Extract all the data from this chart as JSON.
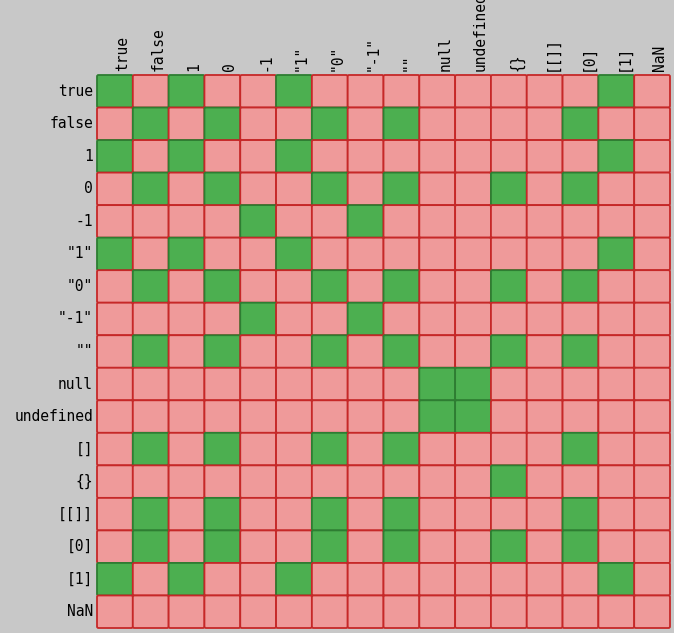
{
  "row_labels": [
    "true",
    "false",
    "1",
    "0",
    "-1",
    "\"1\"",
    "\"0\"",
    "\"-1\"",
    "\"\"",
    "null",
    "undefined",
    "[]",
    "{}",
    "[[]]",
    "[0]",
    "[1]",
    "NaN"
  ],
  "col_labels": [
    "true",
    "false",
    "1",
    "0",
    "-1",
    "\"1\"",
    "\"0\"",
    "\"-1\"",
    "\"\"",
    "null",
    "undefined",
    "{}",
    "[[]]",
    "[0]",
    "[1]",
    "NaN"
  ],
  "green_color": "#4CAF50",
  "red_color": "#EF9A9A",
  "border_red": "#C62828",
  "border_green": "#2E7D32",
  "fig_bg": "#C8C8C8",
  "grid": [
    [
      1,
      0,
      1,
      0,
      0,
      1,
      0,
      0,
      0,
      0,
      0,
      0,
      0,
      0,
      1,
      0
    ],
    [
      0,
      1,
      0,
      1,
      0,
      0,
      1,
      0,
      1,
      0,
      0,
      0,
      0,
      1,
      0,
      0
    ],
    [
      1,
      0,
      1,
      0,
      0,
      1,
      0,
      0,
      0,
      0,
      0,
      0,
      0,
      0,
      1,
      0
    ],
    [
      0,
      1,
      0,
      1,
      0,
      0,
      1,
      0,
      1,
      0,
      0,
      1,
      0,
      1,
      0,
      0
    ],
    [
      0,
      0,
      0,
      0,
      1,
      0,
      0,
      1,
      0,
      0,
      0,
      0,
      0,
      0,
      0,
      0
    ],
    [
      1,
      0,
      1,
      0,
      0,
      1,
      0,
      0,
      0,
      0,
      0,
      0,
      0,
      0,
      1,
      0
    ],
    [
      0,
      1,
      0,
      1,
      0,
      0,
      1,
      0,
      1,
      0,
      0,
      1,
      0,
      1,
      0,
      0
    ],
    [
      0,
      0,
      0,
      0,
      1,
      0,
      0,
      1,
      0,
      0,
      0,
      0,
      0,
      0,
      0,
      0
    ],
    [
      0,
      1,
      0,
      1,
      0,
      0,
      1,
      0,
      1,
      0,
      0,
      1,
      0,
      1,
      0,
      0
    ],
    [
      0,
      0,
      0,
      0,
      0,
      0,
      0,
      0,
      0,
      1,
      1,
      0,
      0,
      0,
      0,
      0
    ],
    [
      0,
      0,
      0,
      0,
      0,
      0,
      0,
      0,
      0,
      1,
      1,
      0,
      0,
      0,
      0,
      0
    ],
    [
      0,
      1,
      0,
      1,
      0,
      0,
      1,
      0,
      1,
      0,
      0,
      0,
      0,
      1,
      0,
      0
    ],
    [
      0,
      0,
      0,
      0,
      0,
      0,
      0,
      0,
      0,
      0,
      0,
      1,
      0,
      0,
      0,
      0
    ],
    [
      0,
      1,
      0,
      1,
      0,
      0,
      1,
      0,
      1,
      0,
      0,
      0,
      0,
      1,
      0,
      0
    ],
    [
      0,
      1,
      0,
      1,
      0,
      0,
      1,
      0,
      1,
      0,
      0,
      1,
      0,
      1,
      0,
      0
    ],
    [
      1,
      0,
      1,
      0,
      0,
      1,
      0,
      0,
      0,
      0,
      0,
      0,
      0,
      0,
      1,
      0
    ],
    [
      0,
      0,
      0,
      0,
      0,
      0,
      0,
      0,
      0,
      0,
      0,
      0,
      0,
      0,
      0,
      0
    ]
  ],
  "label_fontsize": 10.5
}
